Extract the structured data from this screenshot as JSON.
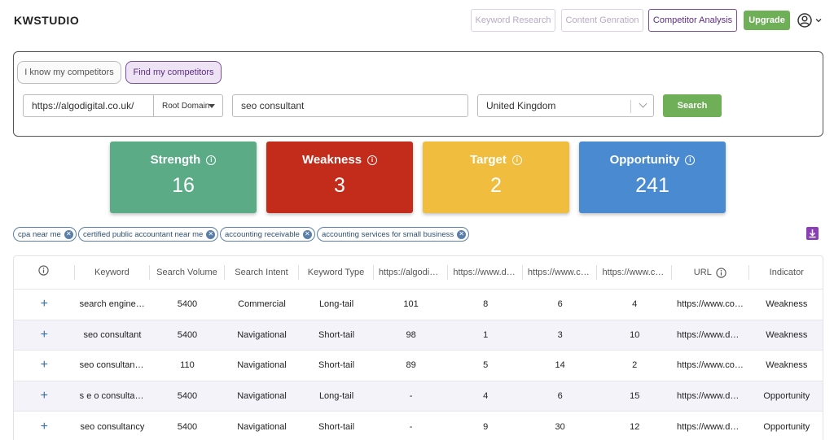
{
  "app": {
    "logo": "KWSTUDIO"
  },
  "nav": {
    "keyword_research": "Keyword Research",
    "content_generation": "Content Genration",
    "competitor_analysis": "Competitor Analysis",
    "upgrade": "Upgrade"
  },
  "search": {
    "toggle_know": "I know my competitors",
    "toggle_find": "Find my competitors",
    "domain_value": "https://algodigital.co.uk/",
    "scope_value": "Root Domain",
    "keyword_value": "seo consultant",
    "country_value": "United Kingdom",
    "search_label": "Search"
  },
  "cards": [
    {
      "title": "Strength",
      "value": "16",
      "color": "#5aab86"
    },
    {
      "title": "Weakness",
      "value": "3",
      "color": "#c32b1b"
    },
    {
      "title": "Target",
      "value": "2",
      "color": "#f0bd3e"
    },
    {
      "title": "Opportunity",
      "value": "241",
      "color": "#4a8ad1"
    }
  ],
  "tags": [
    "cpa near me",
    "certified public accountant near me",
    "accounting receivable",
    "accounting services for small business"
  ],
  "table": {
    "headers": [
      "Keyword",
      "Search Volume",
      "Search Intent",
      "Keyword Type",
      "https://algodigital.",
      "https://www.danie",
      "https://www.carrie",
      "https://www.cours",
      "URL",
      "Indicator"
    ],
    "rows": [
      [
        "search engine optimization consultant",
        "5400",
        "Commercial",
        "Long-tail",
        "101",
        "8",
        "6",
        "4",
        "https://www.coursera.org",
        "Weakness"
      ],
      [
        "seo consultant",
        "5400",
        "Navigational",
        "Short-tail",
        "98",
        "1",
        "3",
        "10",
        "https://www.danielfoley.co.uk",
        "Weakness"
      ],
      [
        "seo consultant london",
        "110",
        "Navigational",
        "Short-tail",
        "89",
        "5",
        "14",
        "2",
        "https://www.coursera.org",
        "Weakness"
      ],
      [
        "s e o consultants",
        "5400",
        "Navigational",
        "Long-tail",
        "-",
        "4",
        "6",
        "15",
        "https://www.danielfoley.co.uk",
        "Opportunity"
      ],
      [
        "seo consultancy",
        "5400",
        "Navigational",
        "Short-tail",
        "-",
        "9",
        "30",
        "12",
        "https://www.danielfoley.co.uk",
        "Opportunity"
      ]
    ]
  }
}
